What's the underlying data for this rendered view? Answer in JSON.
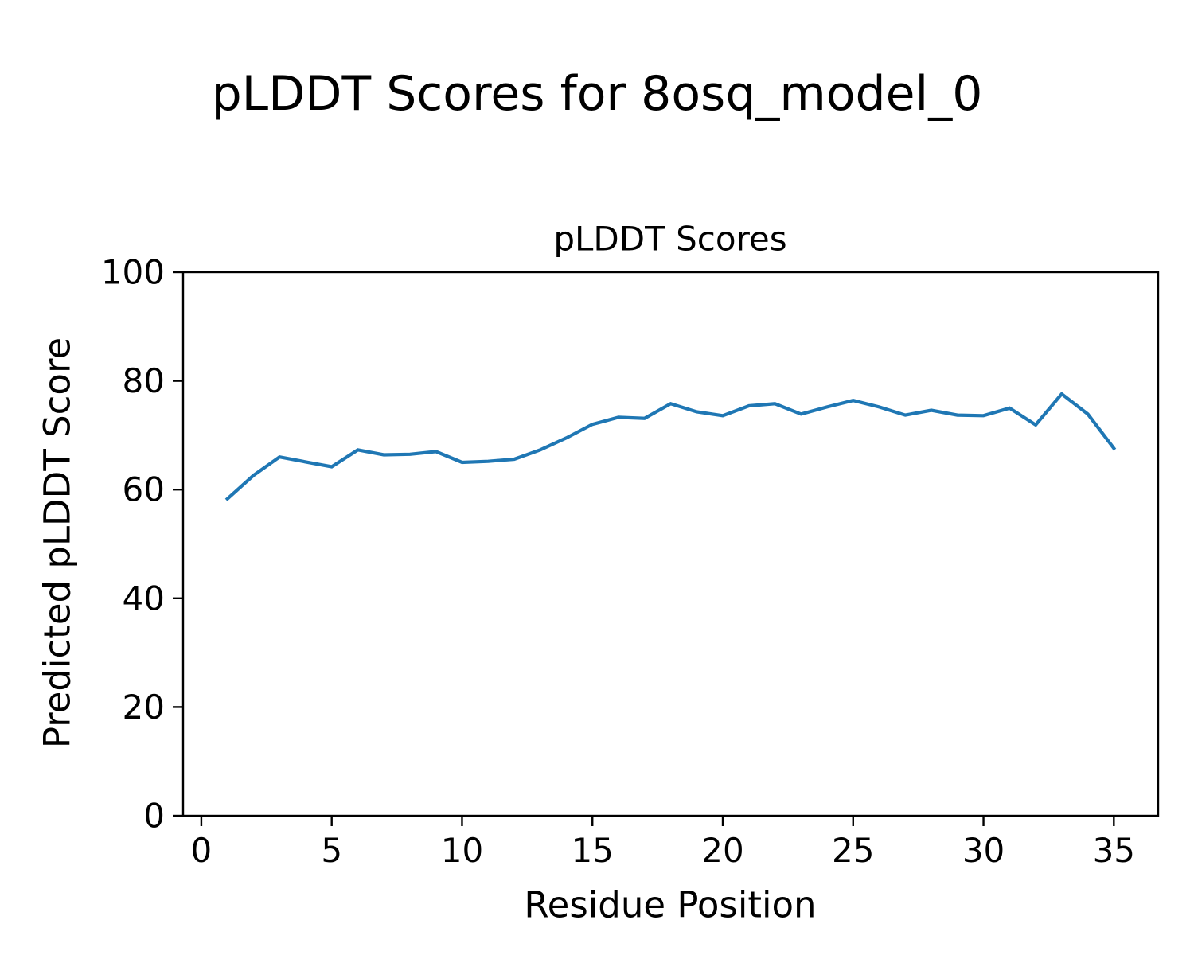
{
  "figure": {
    "background": "#ffffff"
  },
  "chart_data": {
    "type": "line",
    "suptitle": "pLDDT Scores for 8osq_model_0",
    "title": "pLDDT Scores",
    "xlabel": "Residue Position",
    "ylabel": "Predicted pLDDT Score",
    "x": [
      1,
      2,
      3,
      4,
      5,
      6,
      7,
      8,
      9,
      10,
      11,
      12,
      13,
      14,
      15,
      16,
      17,
      18,
      19,
      20,
      21,
      22,
      23,
      24,
      25,
      26,
      27,
      28,
      29,
      30,
      31,
      32,
      33,
      34,
      35
    ],
    "y": [
      58.3,
      62.6,
      66.0,
      65.1,
      64.2,
      67.3,
      66.4,
      66.5,
      67.0,
      65.0,
      65.2,
      65.6,
      67.3,
      69.5,
      72.0,
      73.3,
      73.1,
      75.8,
      74.3,
      73.6,
      75.4,
      75.8,
      73.9,
      75.2,
      76.4,
      75.2,
      73.7,
      74.6,
      73.7,
      73.6,
      75.0,
      71.9,
      77.6,
      73.9,
      67.6
    ],
    "xlim": [
      -0.7,
      36.7
    ],
    "ylim": [
      0,
      100
    ],
    "x_ticks": [
      0,
      5,
      10,
      15,
      20,
      25,
      30,
      35
    ],
    "y_ticks": [
      0,
      20,
      40,
      60,
      80,
      100
    ],
    "line_color": "#1f77b4",
    "axis_color": "#000000",
    "grid": false,
    "legend": null
  }
}
